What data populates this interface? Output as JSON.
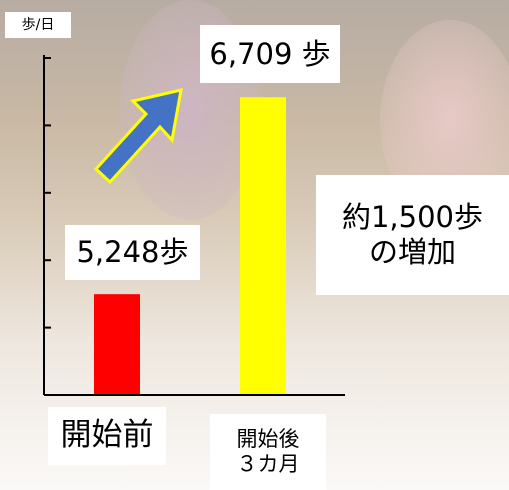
{
  "chart_data": {
    "type": "bar",
    "y_label": "歩/日",
    "categories": [
      "開始前",
      "開始後\n３カ月"
    ],
    "values": [
      5248,
      6709
    ],
    "value_labels": [
      "5,248歩",
      "6,709 歩"
    ],
    "colors": [
      "#ff0000",
      "#ffff00"
    ],
    "ylim": [
      4500,
      7000
    ],
    "yticks": [
      4500,
      5000,
      5500,
      6000,
      6500,
      7000
    ],
    "annotation": "約1,500歩\nの増加"
  }
}
